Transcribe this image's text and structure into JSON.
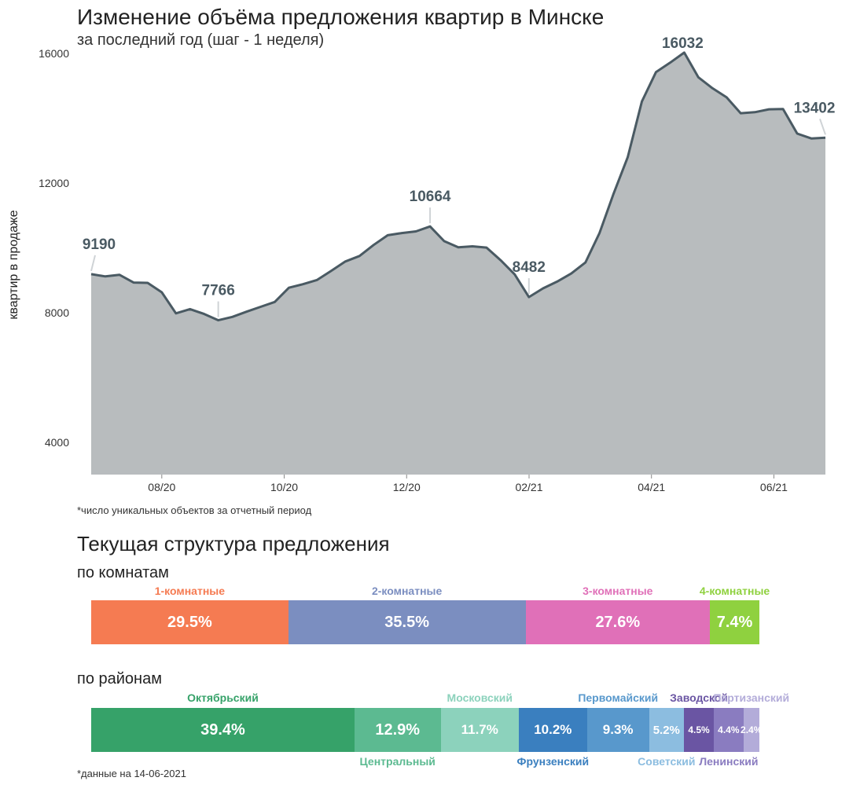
{
  "title": "Изменение объёма предложения квартир в Минске",
  "subtitle": "за последний год (шаг - 1 неделя)",
  "chart_data": {
    "type": "area",
    "ylabel": "квартир в продаже",
    "ylim": [
      3000,
      16200
    ],
    "yticks": [
      "4000",
      "8000",
      "12000",
      "16000"
    ],
    "xticks": [
      "08/20",
      "10/20",
      "12/20",
      "02/21",
      "04/21",
      "06/21"
    ],
    "series": [
      {
        "values": [
          9190,
          9120,
          9170,
          8930,
          8920,
          8630,
          7980,
          8110,
          7960,
          7766,
          7870,
          8030,
          8180,
          8330,
          8770,
          8880,
          9010,
          9290,
          9580,
          9750,
          10090,
          10390,
          10460,
          10510,
          10664,
          10210,
          10020,
          10050,
          10010,
          9620,
          9180,
          8482,
          8750,
          8960,
          9210,
          9550,
          10460,
          11680,
          12800,
          14520,
          15430,
          15720,
          16032,
          15270,
          14930,
          14650,
          14160,
          14190,
          14280,
          14290,
          13530,
          13380,
          13402
        ],
        "annotations": [
          {
            "index": 0,
            "label": "9190"
          },
          {
            "index": 9,
            "label": "7766"
          },
          {
            "index": 24,
            "label": "10664"
          },
          {
            "index": 31,
            "label": "8482"
          },
          {
            "index": 42,
            "label": "16032"
          },
          {
            "index": 52,
            "label": "13402"
          }
        ]
      }
    ],
    "colors": {
      "fill": "#b8bcbe",
      "line": "#4a5a63",
      "label": "#4a5a63"
    }
  },
  "footnote1": "*число уникальных объектов за отчетный период",
  "section_title": "Текущая структура предложения",
  "rooms": {
    "title": "по комнатам",
    "segments": [
      {
        "name": "1-комнатные",
        "value": 29.5,
        "label": "29.5%",
        "color": "#f57b52"
      },
      {
        "name": "2-комнатные",
        "value": 35.5,
        "label": "35.5%",
        "color": "#7b8ec0"
      },
      {
        "name": "3-комнатные",
        "value": 27.6,
        "label": "27.6%",
        "color": "#e070b8"
      },
      {
        "name": "4-комнатные",
        "value": 7.4,
        "label": "7.4%",
        "color": "#8fd13f"
      }
    ]
  },
  "districts": {
    "title": "по районам",
    "segments": [
      {
        "name": "Октябрьский",
        "value": 39.4,
        "label": "39.4%",
        "color": "#36a269",
        "pos": "top"
      },
      {
        "name": "Центральный",
        "value": 12.9,
        "label": "12.9%",
        "color": "#5cba91",
        "pos": "bottom"
      },
      {
        "name": "Московский",
        "value": 11.7,
        "label": "11.7%",
        "color": "#8cd2bc",
        "pos": "top"
      },
      {
        "name": "Фрунзенский",
        "value": 10.2,
        "label": "10.2%",
        "color": "#3a7fbf",
        "pos": "bottom"
      },
      {
        "name": "Первомайский",
        "value": 9.3,
        "label": "9.3%",
        "color": "#5898cc",
        "pos": "top"
      },
      {
        "name": "Советский",
        "value": 5.2,
        "label": "5.2%",
        "color": "#8cbde0",
        "pos": "bottom"
      },
      {
        "name": "Заводской",
        "value": 4.5,
        "label": "4.5%",
        "color": "#6a55a3",
        "pos": "top"
      },
      {
        "name": "Ленинский",
        "value": 4.4,
        "label": "4.4%",
        "color": "#8a7cc0",
        "pos": "bottom"
      },
      {
        "name": "Партизанский",
        "value": 2.4,
        "label": "2.4%",
        "color": "#b3acd9",
        "pos": "top"
      }
    ]
  },
  "footnote2": "*данные на 14-06-2021"
}
